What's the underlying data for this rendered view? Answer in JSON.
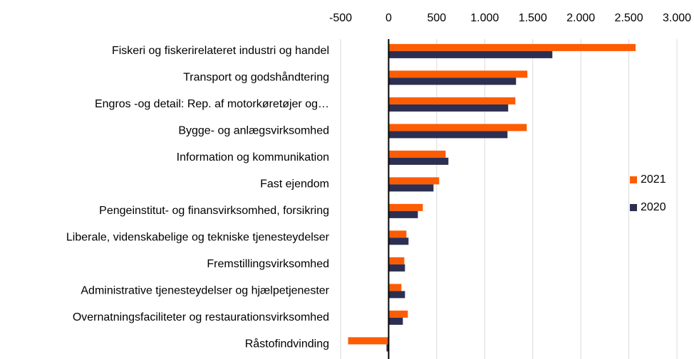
{
  "chart_data": {
    "type": "hbar",
    "categories": [
      "Fiskeri og fiskerirelateret industri og handel",
      "Transport og godshåndtering",
      "Engros -og detail: Rep. af motorkøretøjer og…",
      "Bygge- og anlægsvirksomhed",
      "Information og kommunikation",
      "Fast ejendom",
      "Pengeinstitut- og finansvirksomhed, forsikring",
      "Liberale, videnskabelige og tekniske tjenesteydelser",
      "Fremstillingsvirksomhed",
      "Administrative tjenesteydelser og hjælpetjenester",
      "Overnatningsfaciliteter og restaurationsvirksomhed",
      "Råstofindvinding"
    ],
    "series": [
      {
        "name": "2021",
        "color": "#fe5c02",
        "values": [
          2570,
          1444,
          1319,
          1437,
          593,
          526,
          356,
          185,
          163,
          133,
          200,
          -422
        ]
      },
      {
        "name": "2020",
        "color": "#2c2f51",
        "values": [
          1704,
          1326,
          1244,
          1237,
          622,
          467,
          304,
          207,
          170,
          170,
          148,
          -22
        ]
      }
    ],
    "xlim": [
      -500,
      3000
    ],
    "xticks": [
      -500,
      0,
      500,
      {
        "value": 1000,
        "label": "1.000"
      },
      {
        "value": 1500,
        "label": "1.500"
      },
      {
        "value": 2000,
        "label": "2.000"
      },
      {
        "value": 2500,
        "label": "2.500"
      },
      {
        "value": 3000,
        "label": "3.000"
      }
    ],
    "grid": true,
    "legend": "right"
  }
}
